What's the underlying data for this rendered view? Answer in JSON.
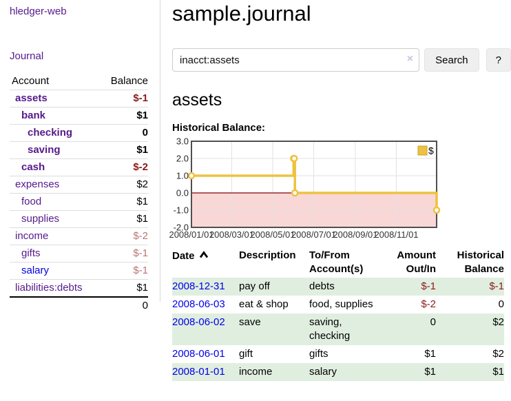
{
  "sidebar": {
    "app_title": "hledger-web",
    "journal_label": "Journal",
    "accounts_table": {
      "headers": {
        "account": "Account",
        "balance": "Balance"
      },
      "rows": [
        {
          "name": "assets",
          "balance": "$-1",
          "depth": 1,
          "selected": true,
          "balance_style": "neg-strong"
        },
        {
          "name": "bank",
          "balance": "$1",
          "depth": 2,
          "selected": true,
          "balance_style": ""
        },
        {
          "name": "checking",
          "balance": "0",
          "depth": 3,
          "selected": true,
          "balance_style": ""
        },
        {
          "name": "saving",
          "balance": "$1",
          "depth": 3,
          "selected": true,
          "balance_style": ""
        },
        {
          "name": "cash",
          "balance": "$-2",
          "depth": 2,
          "selected": true,
          "balance_style": "neg-strong"
        },
        {
          "name": "expenses",
          "balance": "$2",
          "depth": 1,
          "selected": false,
          "balance_style": ""
        },
        {
          "name": "food",
          "balance": "$1",
          "depth": 2,
          "selected": false,
          "balance_style": ""
        },
        {
          "name": "supplies",
          "balance": "$1",
          "depth": 2,
          "selected": false,
          "balance_style": ""
        },
        {
          "name": "income",
          "balance": "$-2",
          "depth": 1,
          "selected": false,
          "balance_style": "neg-faded"
        },
        {
          "name": "gifts",
          "balance": "$-1",
          "depth": 2,
          "selected": false,
          "balance_style": "neg-faded"
        },
        {
          "name": "salary",
          "balance": "$-1",
          "depth": 2,
          "selected": false,
          "balance_style": "neg-faded",
          "link_color": "blue"
        },
        {
          "name": "liabilities:debts",
          "balance": "$1",
          "depth": 1,
          "selected": false,
          "balance_style": ""
        }
      ],
      "total": "0"
    }
  },
  "main": {
    "title": "sample.journal",
    "search": {
      "value": "inacct:assets",
      "clear_icon": "×",
      "search_button": "Search",
      "help_button": "?"
    },
    "account_heading": "assets",
    "chart_label": "Historical Balance:"
  },
  "chart_data": {
    "type": "line",
    "subtype": "step",
    "title": "Historical Balance:",
    "legend": {
      "position": "top-right",
      "label": "$"
    },
    "xlim": [
      "2008-01-01",
      "2008-12-31"
    ],
    "ylim": [
      -2.0,
      3.0
    ],
    "yticks": [
      3.0,
      2.0,
      1.0,
      0.0,
      -1.0,
      -2.0
    ],
    "ytick_labels": [
      "3.0",
      "2.0",
      "1.0",
      "0.0",
      "-1.0",
      "-2.0"
    ],
    "xticks": [
      {
        "date": "2008-01-01",
        "label": "2008/01/01"
      },
      {
        "date": "2008-03-01",
        "label": "2008/03/01"
      },
      {
        "date": "2008-05-01",
        "label": "2008/05/01"
      },
      {
        "date": "2008-07-01",
        "label": "2008/07/01"
      },
      {
        "date": "2008-09-01",
        "label": "2008/09/01"
      },
      {
        "date": "2008-11-01",
        "label": "2008/11/01"
      }
    ],
    "series": [
      {
        "name": "$",
        "color": "#edc240",
        "points": [
          {
            "date": "2008-01-01",
            "value": 1
          },
          {
            "date": "2008-06-01",
            "value": 2
          },
          {
            "date": "2008-06-02",
            "value": 2
          },
          {
            "date": "2008-06-03",
            "value": 0
          },
          {
            "date": "2008-12-31",
            "value": -1
          }
        ]
      }
    ],
    "negative_region_color": "#f9d7d7",
    "zero_line_color": "#800000",
    "grid_color": "#e2e2e2",
    "border_color": "#4f4f4f"
  },
  "register_table": {
    "headers": [
      "Date",
      "Description",
      "To/From Account(s)",
      "Amount Out/In",
      "Historical Balance"
    ],
    "rows": [
      {
        "date": "2008-12-31",
        "description": "pay off",
        "accounts": "debts",
        "amount": "$-1",
        "amount_neg": true,
        "balance": "$-1",
        "balance_neg": true
      },
      {
        "date": "2008-06-03",
        "description": "eat & shop",
        "accounts": "food, supplies",
        "amount": "$-2",
        "amount_neg": true,
        "balance": "0",
        "balance_neg": false
      },
      {
        "date": "2008-06-02",
        "description": "save",
        "accounts": "saving, checking",
        "amount": "0",
        "amount_neg": false,
        "balance": "$2",
        "balance_neg": false
      },
      {
        "date": "2008-06-01",
        "description": "gift",
        "accounts": "gifts",
        "amount": "$1",
        "amount_neg": false,
        "balance": "$2",
        "balance_neg": false
      },
      {
        "date": "2008-01-01",
        "description": "income",
        "accounts": "salary",
        "amount": "$1",
        "amount_neg": false,
        "balance": "$1",
        "balance_neg": false
      }
    ]
  }
}
